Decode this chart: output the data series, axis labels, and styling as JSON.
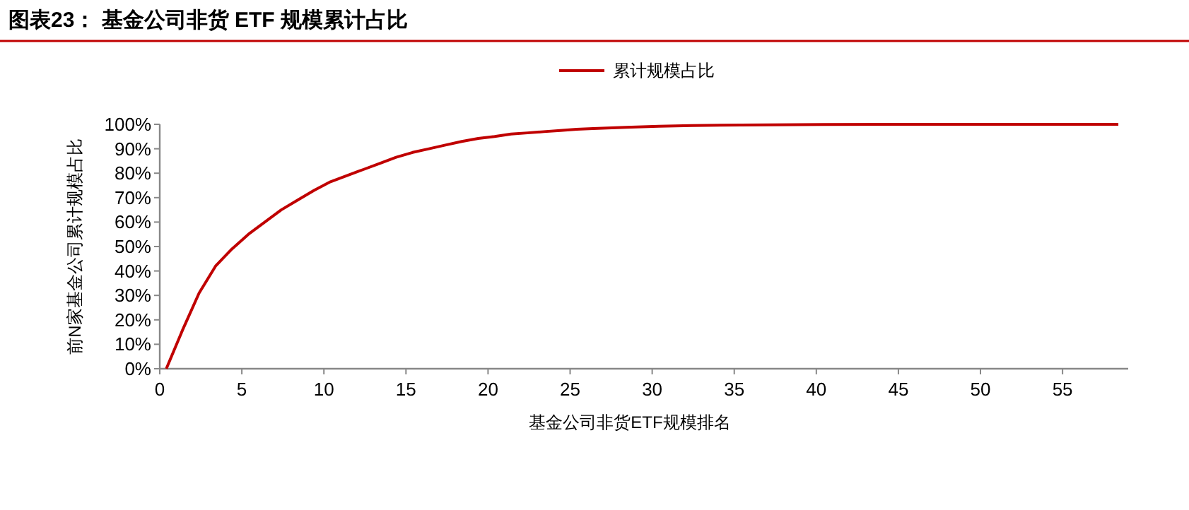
{
  "chart_data": {
    "type": "line",
    "title": "图表23：  基金公司非货 ETF 规模累计占比",
    "xlabel": "基金公司非货ETF规模排名",
    "ylabel": "前N家基金公司累计规模占比",
    "legend": "top",
    "grid": false,
    "marker": "none",
    "line_style": "solid",
    "xlim": [
      0,
      59
    ],
    "xticks": [
      0,
      5,
      10,
      15,
      20,
      25,
      30,
      35,
      40,
      45,
      50,
      55
    ],
    "ylim": [
      0,
      100
    ],
    "yticks": [
      {
        "value": 0,
        "label": "0%"
      },
      {
        "value": 10,
        "label": "10%"
      },
      {
        "value": 20,
        "label": "20%"
      },
      {
        "value": 30,
        "label": "30%"
      },
      {
        "value": 40,
        "label": "40%"
      },
      {
        "value": 50,
        "label": "50%"
      },
      {
        "value": 60,
        "label": "60%"
      },
      {
        "value": 70,
        "label": "70%"
      },
      {
        "value": 80,
        "label": "80%"
      },
      {
        "value": 90,
        "label": "90%"
      },
      {
        "value": 100,
        "label": "100%"
      }
    ],
    "x": [
      0.4,
      1.4,
      2.4,
      3.4,
      4.4,
      5.4,
      6.4,
      7.4,
      8.4,
      9.4,
      10.4,
      11.4,
      12.4,
      13.4,
      14.4,
      15.4,
      16.4,
      17.4,
      18.4,
      19.4,
      20.4,
      21.4,
      22.4,
      23.4,
      24.4,
      25.4,
      26.4,
      28.4,
      30.4,
      32.4,
      35.4,
      40.4,
      45.4,
      58.4
    ],
    "series": [
      {
        "name": "累计规模占比",
        "color": "#c00000",
        "values": [
          0,
          16,
          31,
          42,
          49,
          55,
          60,
          65,
          69,
          73,
          76.5,
          79,
          81.5,
          84,
          86.5,
          88.5,
          90,
          91.5,
          93,
          94.2,
          95,
          96,
          96.5,
          97,
          97.5,
          98,
          98.3,
          98.8,
          99.2,
          99.5,
          99.7,
          99.9,
          100,
          100
        ]
      }
    ]
  }
}
